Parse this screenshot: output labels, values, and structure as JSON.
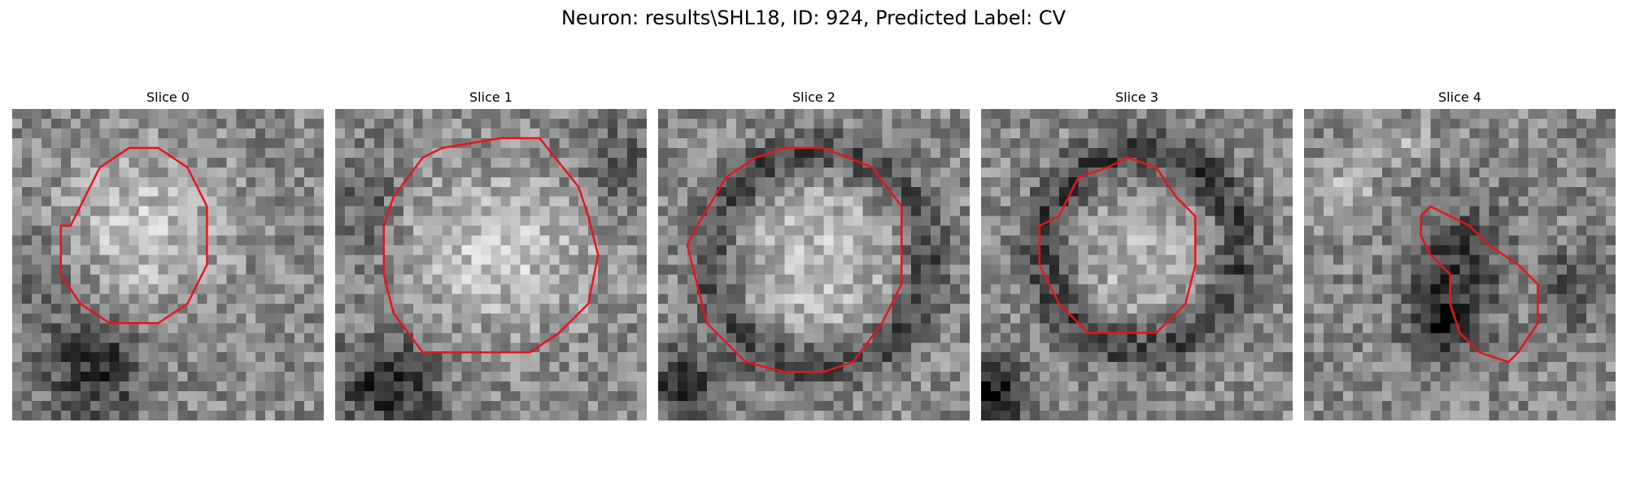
{
  "figure": {
    "title": "Neuron: results\\SHL18, ID: 924, Predicted Label: CV"
  },
  "panels": [
    {
      "title": "Slice 0",
      "contour_color": "#e8141c"
    },
    {
      "title": "Slice 1",
      "contour_color": "#e8141c"
    },
    {
      "title": "Slice 2",
      "contour_color": "#e8141c"
    },
    {
      "title": "Slice 3",
      "contour_color": "#e8141c"
    },
    {
      "title": "Slice 4",
      "contour_color": "#e8141c"
    }
  ]
}
